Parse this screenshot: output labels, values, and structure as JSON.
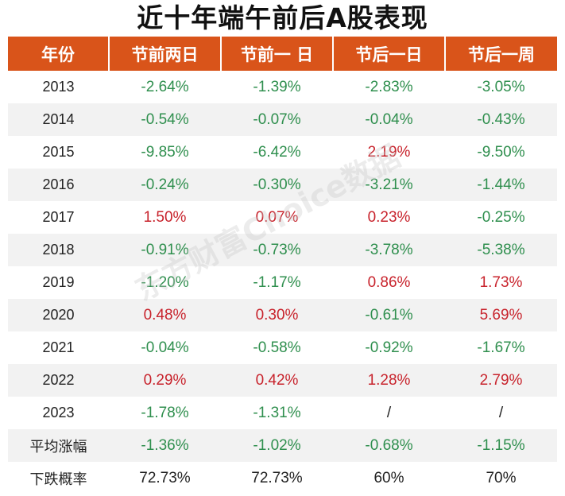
{
  "title": "近十年端午前后A股表现",
  "headers": [
    "年份",
    "节前两日",
    "节前一 日",
    "节后一日",
    "节后一周"
  ],
  "rows": [
    {
      "label": "2013",
      "values": [
        "-2.64%",
        "-1.39%",
        "-2.83%",
        "-3.05%"
      ]
    },
    {
      "label": "2014",
      "values": [
        "-0.54%",
        "-0.07%",
        "-0.04%",
        "-0.43%"
      ]
    },
    {
      "label": "2015",
      "values": [
        "-9.85%",
        "-6.42%",
        "2.19%",
        "-9.50%"
      ]
    },
    {
      "label": "2016",
      "values": [
        "-0.24%",
        "-0.30%",
        "-3.21%",
        "-1.44%"
      ]
    },
    {
      "label": "2017",
      "values": [
        "1.50%",
        "0.07%",
        "0.23%",
        "-0.25%"
      ]
    },
    {
      "label": "2018",
      "values": [
        "-0.91%",
        "-0.73%",
        "-3.78%",
        "-5.38%"
      ]
    },
    {
      "label": "2019",
      "values": [
        "-1.20%",
        "-1.17%",
        "0.86%",
        "1.73%"
      ]
    },
    {
      "label": "2020",
      "values": [
        "0.48%",
        "0.30%",
        "-0.61%",
        "5.69%"
      ]
    },
    {
      "label": "2021",
      "values": [
        "-0.04%",
        "-0.58%",
        "-0.92%",
        "-1.67%"
      ]
    },
    {
      "label": "2022",
      "values": [
        "0.29%",
        "0.42%",
        "1.28%",
        "2.79%"
      ]
    },
    {
      "label": "2023",
      "values": [
        "-1.78%",
        "-1.31%",
        "/",
        "/"
      ]
    },
    {
      "label": "平均涨幅",
      "values": [
        "-1.36%",
        "-1.02%",
        "-0.68%",
        "-1.15%"
      ]
    },
    {
      "label": "下跌概率",
      "values": [
        "72.73%",
        "72.73%",
        "60%",
        "70%"
      ]
    }
  ],
  "watermark": "东方财富Choice数据",
  "colors": {
    "header_bg": "#d9541a",
    "negative": "#2f8f4e",
    "positive": "#c8232c",
    "alt_row": "#f2f2f2"
  }
}
